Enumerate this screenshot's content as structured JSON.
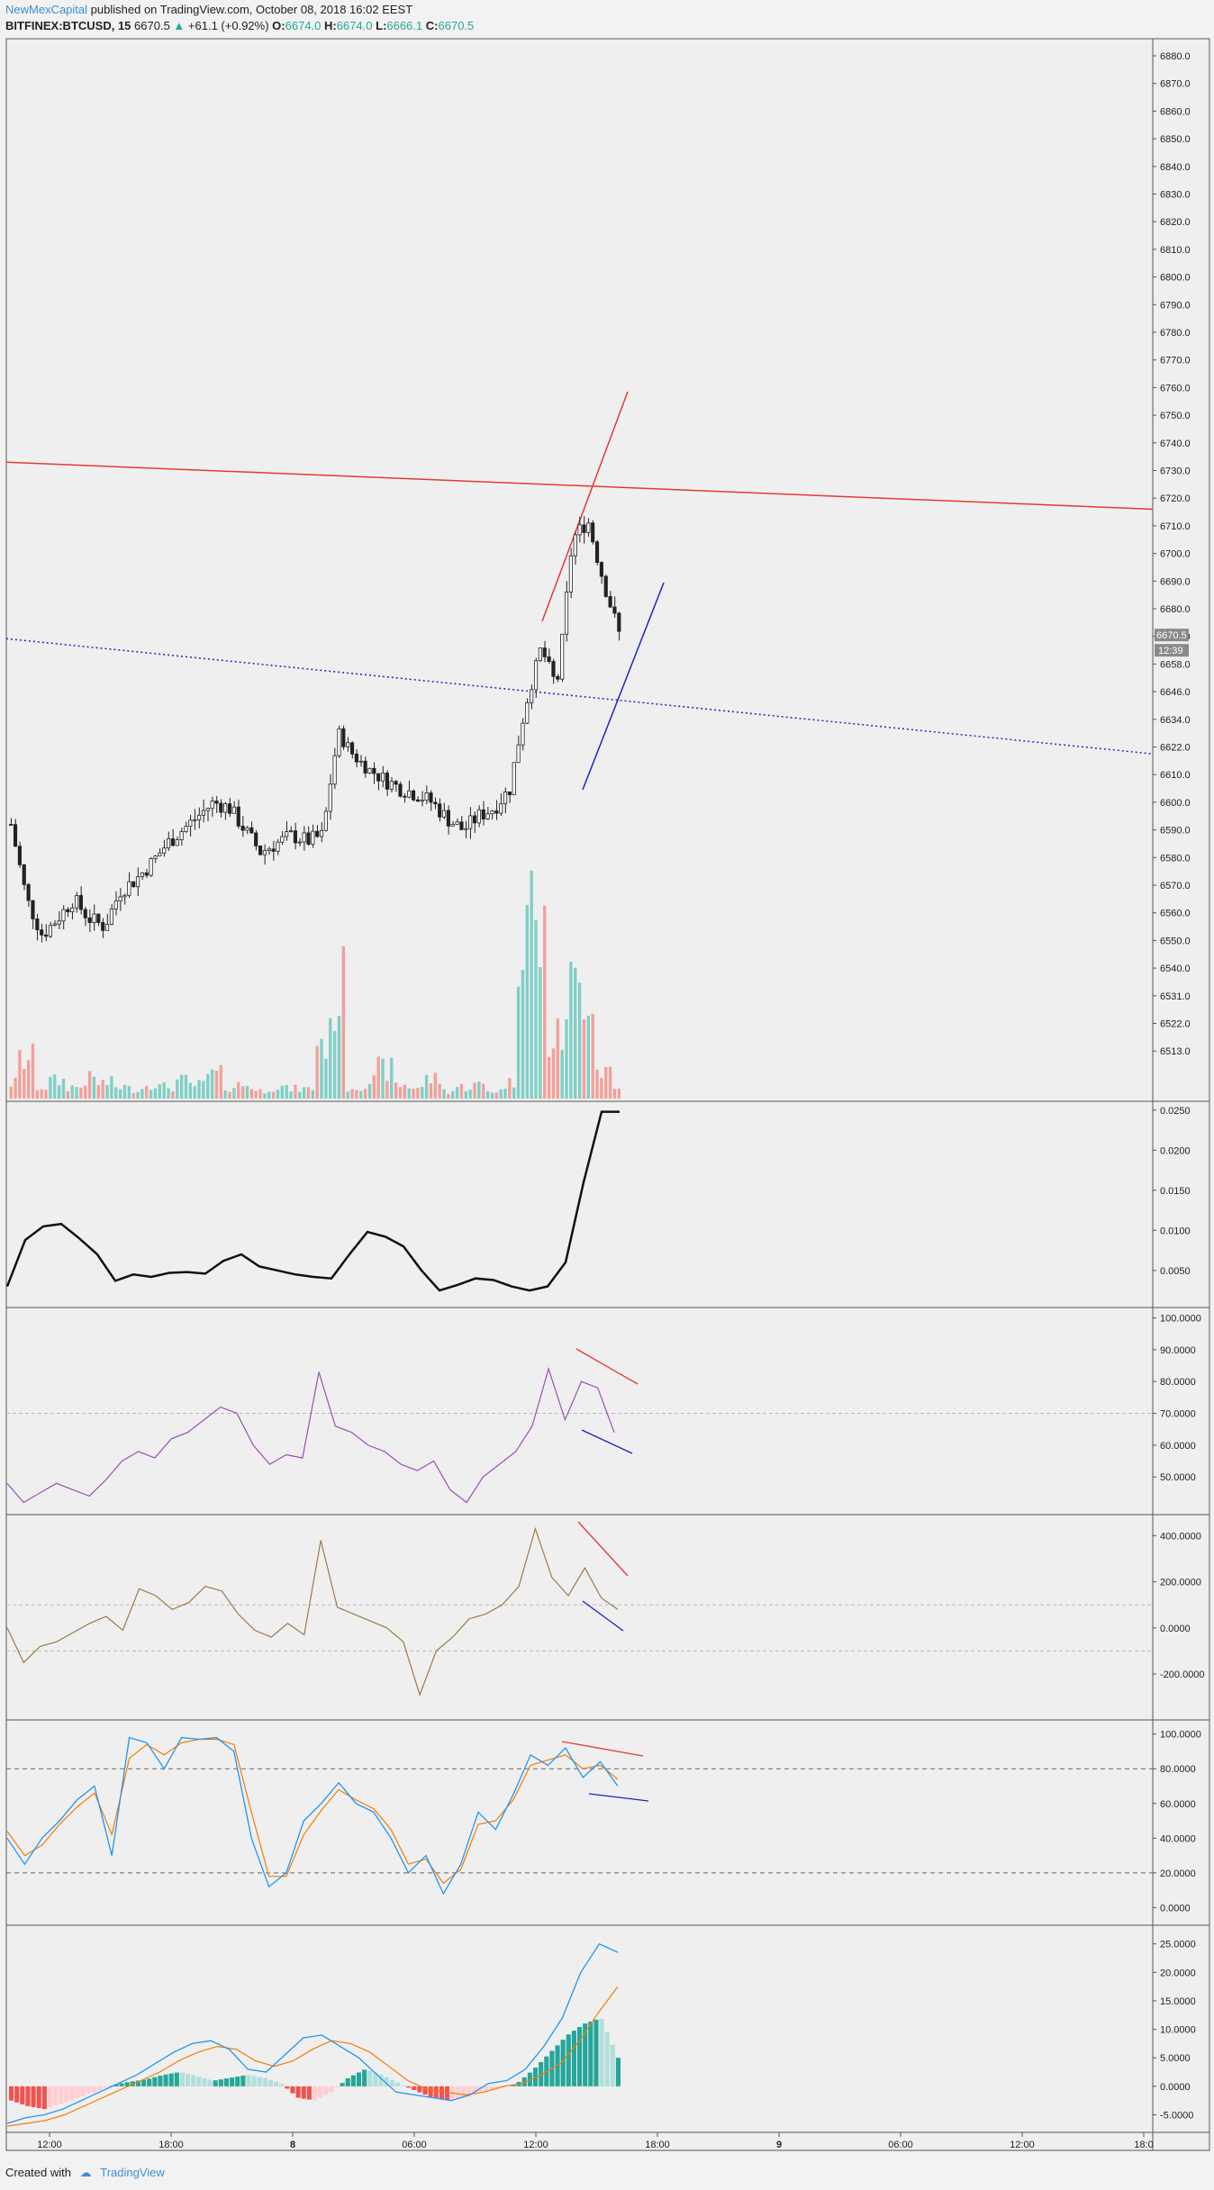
{
  "header": {
    "author": "NewMexCapital",
    "published": "published on TradingView.com, October 08, 2018 16:02 EEST",
    "symbol": "BITFINEX:BTCUSD, 15",
    "last": "6670.5",
    "change_arrow": "▲",
    "change": "+61.1 (+0.92%)",
    "o_label": "O:",
    "o": "6674.0",
    "h_label": "H:",
    "h": "6674.0",
    "l_label": "L:",
    "l": "6666.1",
    "c_label": "C:",
    "c": "6670.5"
  },
  "footer": {
    "created_with": "Created with",
    "brand": "TradingView"
  },
  "colors": {
    "up": "#26a69a",
    "down": "#ef5350",
    "trend_red": "#e53935",
    "trend_blue": "#1e22c8",
    "rsi": "#9b4fb3",
    "cci": "#9c7a4a",
    "stoch_k": "#2196f3",
    "stoch_d": "#f57c00",
    "background": "#efefef"
  },
  "chart_data": [
    {
      "type": "candlestick",
      "panel": "price",
      "yticks": [
        "6880.0",
        "6870.0",
        "6860.0",
        "6850.0",
        "6840.0",
        "6830.0",
        "6820.0",
        "6810.0",
        "6800.0",
        "6790.0",
        "6780.0",
        "6770.0",
        "6760.0",
        "6750.0",
        "6740.0",
        "6730.0",
        "6720.0",
        "6710.0",
        "6700.0",
        "6690.0",
        "6680.0",
        "6670.0",
        "6658.0",
        "6646.0",
        "6634.0",
        "6622.0",
        "6610.0",
        "6600.0",
        "6590.0",
        "6580.0",
        "6570.0",
        "6560.0",
        "6550.0",
        "6540.0",
        "6531.0",
        "6522.0",
        "6513.0"
      ],
      "last_price_label": "6670.5",
      "countdown_label": "12:39",
      "xticks": [
        "12:00",
        "18:00",
        "8",
        "06:00",
        "12:00",
        "18:00",
        "9",
        "06:00",
        "12:00",
        "18:0"
      ],
      "price_path": [
        6592,
        6565,
        6552,
        6558,
        6565,
        6558,
        6555,
        6568,
        6572,
        6578,
        6585,
        6590,
        6595,
        6600,
        6598,
        6590,
        6582,
        6585,
        6588,
        6586,
        6588,
        6628,
        6618,
        6612,
        6608,
        6605,
        6603,
        6600,
        6594,
        6590,
        6595,
        6598,
        6605,
        6640,
        6665,
        6648,
        6705,
        6712,
        6690,
        6671
      ],
      "volume_path": [
        8,
        20,
        6,
        9,
        6,
        10,
        8,
        6,
        5,
        8,
        6,
        9,
        7,
        12,
        6,
        7,
        4,
        6,
        5,
        5,
        30,
        55,
        6,
        9,
        15,
        7,
        6,
        10,
        4,
        6,
        7,
        4,
        8,
        100,
        80,
        30,
        55,
        62,
        15,
        5
      ],
      "trendlines": [
        {
          "name": "red resistance",
          "from": [
            0,
            6733
          ],
          "to": [
            1,
            6716
          ]
        },
        {
          "name": "blue dotted support",
          "from": [
            0,
            6669
          ],
          "to": [
            1,
            6619
          ]
        }
      ]
    },
    {
      "type": "line",
      "panel": "volatility",
      "yticks": [
        "0.0250",
        "0.0200",
        "0.0150",
        "0.0100",
        "0.0050"
      ],
      "ylim": [
        0.0015,
        0.0252
      ],
      "values": [
        0.003,
        0.0088,
        0.0105,
        0.0108,
        0.009,
        0.007,
        0.0037,
        0.0045,
        0.0042,
        0.0047,
        0.0048,
        0.0046,
        0.0062,
        0.007,
        0.0055,
        0.005,
        0.0045,
        0.0042,
        0.004,
        0.007,
        0.0098,
        0.0092,
        0.008,
        0.005,
        0.0025,
        0.0032,
        0.004,
        0.0038,
        0.003,
        0.0025,
        0.003,
        0.006,
        0.016,
        0.0248,
        0.0248
      ]
    },
    {
      "type": "line",
      "panel": "rsi",
      "yticks": [
        "100.0000",
        "90.0000",
        "80.0000",
        "70.0000",
        "60.0000",
        "50.0000"
      ],
      "ylim": [
        41,
        101
      ],
      "hline": 70,
      "values": [
        48,
        42,
        45,
        48,
        46,
        44,
        49,
        55,
        58,
        56,
        62,
        64,
        68,
        72,
        70,
        60,
        54,
        57,
        56,
        83,
        66,
        64,
        60,
        58,
        54,
        52,
        55,
        46,
        42,
        50,
        54,
        58,
        66,
        84,
        68,
        80,
        78,
        64
      ]
    },
    {
      "type": "line",
      "panel": "cci",
      "yticks": [
        "400.0000",
        "200.0000",
        "0.0000",
        "-200.0000"
      ],
      "ylim": [
        -360,
        460
      ],
      "hlines": [
        100,
        -100
      ],
      "values": [
        0,
        -150,
        -80,
        -60,
        -20,
        20,
        50,
        -10,
        170,
        140,
        80,
        110,
        180,
        160,
        60,
        -10,
        -40,
        20,
        -30,
        380,
        90,
        60,
        30,
        0,
        -60,
        -290,
        -100,
        -40,
        40,
        60,
        100,
        180,
        430,
        220,
        140,
        260,
        130,
        80
      ]
    },
    {
      "type": "line",
      "panel": "stochastic",
      "yticks": [
        "100.0000",
        "80.0000",
        "60.0000",
        "40.0000",
        "20.0000",
        "0.0000"
      ],
      "ylim": [
        -5,
        104
      ],
      "hlines": [
        80,
        20
      ],
      "series": [
        {
          "values": [
            40,
            25,
            40,
            50,
            62,
            70,
            30,
            98,
            95,
            80,
            98,
            97,
            98,
            90,
            40,
            12,
            20,
            50,
            60,
            72,
            60,
            55,
            40,
            20,
            30,
            8,
            25,
            55,
            45,
            65,
            88,
            82,
            92,
            75,
            84,
            70
          ]
        },
        {
          "values": [
            44,
            30,
            36,
            48,
            58,
            66,
            42,
            86,
            94,
            88,
            95,
            97,
            97,
            94,
            55,
            18,
            18,
            42,
            56,
            68,
            62,
            57,
            45,
            25,
            28,
            14,
            22,
            48,
            50,
            62,
            82,
            85,
            88,
            80,
            82,
            74
          ]
        }
      ]
    },
    {
      "type": "histogram",
      "panel": "macd",
      "yticks": [
        "25.0000",
        "20.0000",
        "15.0000",
        "10.0000",
        "5.0000",
        "0.0000",
        "-5.0000"
      ],
      "ylim": [
        -6.5,
        27
      ],
      "histogram": [
        -2.5,
        -3.5,
        -4.0,
        -3.0,
        -2.0,
        -1.0,
        0.2,
        0.8,
        1.2,
        2.0,
        2.5,
        1.8,
        1.0,
        1.5,
        2.0,
        1.5,
        0.5,
        -2.0,
        -2.5,
        -1.0,
        1.5,
        3.0,
        2.0,
        0.5,
        -0.8,
        -2.0,
        -2.5,
        -2.0,
        -1.0,
        -0.5,
        0.5,
        3.0,
        6.0,
        9.0,
        11.0,
        12.0,
        5.0
      ],
      "series": [
        {
          "values": [
            -6.5,
            -5.5,
            -5.0,
            -4.0,
            -2.5,
            -1.0,
            0.5,
            2.0,
            4.0,
            6.0,
            7.5,
            8.0,
            6.5,
            3.0,
            2.5,
            5.5,
            8.5,
            9.0,
            7.0,
            5.0,
            2.0,
            -1.0,
            -1.5,
            -2.0,
            -2.5,
            -1.5,
            0.5,
            1.0,
            3.0,
            7.0,
            12.0,
            20.0,
            25.0,
            23.5
          ]
        },
        {
          "values": [
            -7.0,
            -6.5,
            -6.0,
            -5.0,
            -3.5,
            -2.0,
            -0.5,
            1.0,
            2.5,
            4.5,
            6.0,
            7.0,
            6.5,
            4.5,
            3.5,
            4.5,
            6.5,
            8.0,
            7.5,
            6.0,
            3.5,
            1.0,
            -0.5,
            -1.0,
            -1.5,
            -1.0,
            0.0,
            0.5,
            2.0,
            4.0,
            8.0,
            13.0,
            17.5
          ]
        }
      ]
    }
  ]
}
